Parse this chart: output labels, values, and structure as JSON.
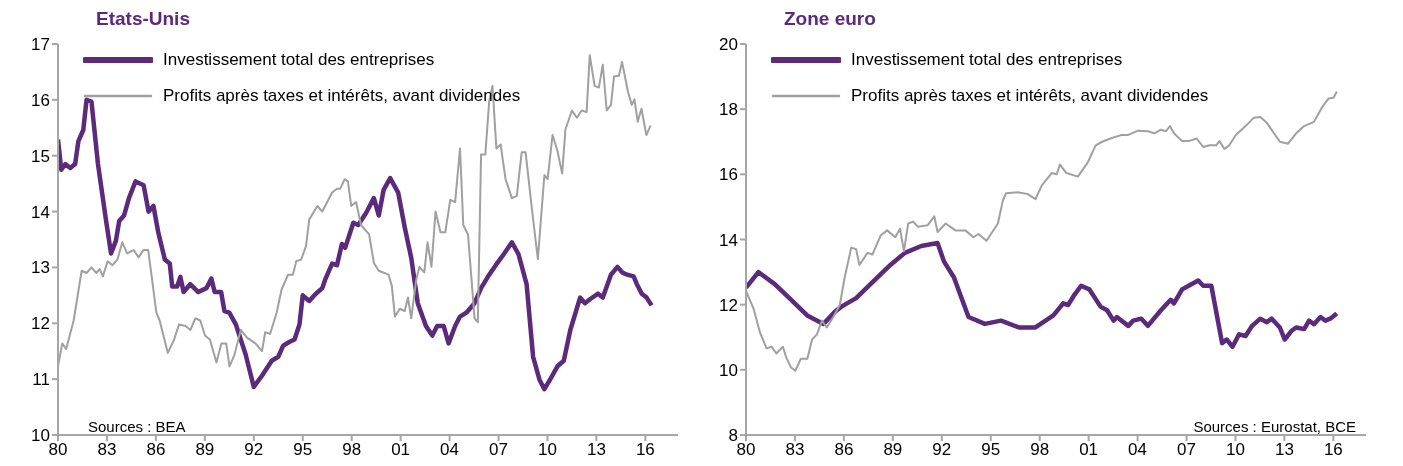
{
  "chart_data": [
    {
      "type": "line",
      "title": "Etats-Unis",
      "legend": "top left",
      "xlim": [
        1980,
        2018
      ],
      "xticks": [
        {
          "value": 1980,
          "label": "80"
        },
        {
          "value": 1983,
          "label": "83"
        },
        {
          "value": 1986,
          "label": "86"
        },
        {
          "value": 1989,
          "label": "89"
        },
        {
          "value": 1992,
          "label": "92"
        },
        {
          "value": 1995,
          "label": "95"
        },
        {
          "value": 1998,
          "label": "98"
        },
        {
          "value": 2001,
          "label": "01"
        },
        {
          "value": 2004,
          "label": "04"
        },
        {
          "value": 2007,
          "label": "07"
        },
        {
          "value": 2010,
          "label": "10"
        },
        {
          "value": 2013,
          "label": "13"
        },
        {
          "value": 2016,
          "label": "16"
        }
      ],
      "ylim": [
        10,
        17
      ],
      "yticks": [
        10,
        11,
        12,
        13,
        14,
        15,
        16,
        17
      ],
      "grid": false,
      "annotations": [
        "Sources : BEA"
      ],
      "series": [
        {
          "name": "Investissement total des entreprises",
          "color": "#5b2a7b",
          "x": [
            1980.0,
            1980.2,
            1980.45,
            1980.75,
            1981.05,
            1981.25,
            1981.55,
            1981.75,
            1982.05,
            1982.45,
            1982.95,
            1983.25,
            1983.55,
            1983.75,
            1984.05,
            1984.35,
            1984.75,
            1985.25,
            1985.55,
            1985.85,
            1986.15,
            1986.55,
            1986.85,
            1987.0,
            1987.3,
            1987.5,
            1987.7,
            1988.1,
            1988.6,
            1989.1,
            1989.4,
            1989.6,
            1990.0,
            1990.2,
            1990.5,
            1990.9,
            1991.5,
            1992.0,
            1992.5,
            1993.1,
            1993.5,
            1993.8,
            1994.2,
            1994.5,
            1994.8,
            1995.0,
            1995.4,
            1995.8,
            1996.2,
            1996.4,
            1996.8,
            1997.1,
            1997.4,
            1997.6,
            1998.1,
            1998.4,
            1998.87,
            1999.36,
            1999.66,
            1999.96,
            2000.36,
            2000.85,
            2001.25,
            2001.65,
            2002.05,
            2002.55,
            2002.94,
            2003.24,
            2003.64,
            2003.94,
            2004.34,
            2004.64,
            2005.03,
            2005.53,
            2005.93,
            2006.43,
            2006.83,
            2007.33,
            2007.82,
            2008.22,
            2008.72,
            2009.12,
            2009.51,
            2009.81,
            2010.21,
            2010.61,
            2011.0,
            2011.4,
            2012.0,
            2012.3,
            2012.6,
            2013.1,
            2013.39,
            2013.89,
            2014.29,
            2014.59,
            2014.88,
            2015.28,
            2015.48,
            2015.78,
            2016.08,
            2016.38
          ],
          "values": [
            15.29,
            14.75,
            14.85,
            14.78,
            14.85,
            15.26,
            15.46,
            16.0,
            15.97,
            14.85,
            13.83,
            13.25,
            13.48,
            13.83,
            13.93,
            14.24,
            14.54,
            14.47,
            14.0,
            14.1,
            13.62,
            13.14,
            13.07,
            12.66,
            12.66,
            12.83,
            12.56,
            12.7,
            12.56,
            12.63,
            12.8,
            12.56,
            12.56,
            12.22,
            12.19,
            11.98,
            11.44,
            10.86,
            11.06,
            11.33,
            11.4,
            11.6,
            11.67,
            11.71,
            11.98,
            12.5,
            12.4,
            12.53,
            12.63,
            12.8,
            13.07,
            13.04,
            13.42,
            13.35,
            13.8,
            13.76,
            13.97,
            14.24,
            13.93,
            14.39,
            14.6,
            14.34,
            13.72,
            13.17,
            12.36,
            11.95,
            11.78,
            11.95,
            11.95,
            11.64,
            11.95,
            12.12,
            12.19,
            12.36,
            12.63,
            12.87,
            13.04,
            13.24,
            13.45,
            13.24,
            12.7,
            11.4,
            10.99,
            10.82,
            11.02,
            11.23,
            11.33,
            11.88,
            12.46,
            12.36,
            12.43,
            12.53,
            12.46,
            12.87,
            13.01,
            12.91,
            12.87,
            12.84,
            12.7,
            12.53,
            12.46,
            12.32
          ]
        },
        {
          "name": "Profits après taxes et intérêts, avant dividendes",
          "color": "#a0a0a0",
          "x": [
            1980.0,
            1980.26,
            1980.5,
            1980.96,
            1981.45,
            1981.75,
            1982.05,
            1982.35,
            1982.55,
            1982.75,
            1983.04,
            1983.34,
            1983.64,
            1983.94,
            1984.24,
            1984.64,
            1984.94,
            1985.23,
            1985.53,
            1986.03,
            1986.23,
            1986.73,
            1987.12,
            1987.42,
            1987.82,
            1988.12,
            1988.42,
            1988.72,
            1989.01,
            1989.31,
            1989.71,
            1990.01,
            1990.31,
            1990.51,
            1990.81,
            1991.2,
            1991.6,
            1992.1,
            1992.5,
            1992.7,
            1993.0,
            1993.4,
            1993.7,
            1994.1,
            1994.4,
            1994.6,
            1994.9,
            1995.2,
            1995.4,
            1995.9,
            1996.2,
            1996.8,
            1997.1,
            1997.3,
            1997.57,
            1997.77,
            1997.97,
            1998.27,
            1998.57,
            1999.07,
            1999.36,
            1999.66,
            2000.26,
            2000.46,
            2000.65,
            2000.95,
            2001.25,
            2001.45,
            2001.65,
            2001.95,
            2002.15,
            2002.45,
            2002.65,
            2002.89,
            2003.14,
            2003.44,
            2003.74,
            2004.04,
            2004.34,
            2004.64,
            2004.84,
            2005.13,
            2005.53,
            2005.73,
            2005.93,
            2006.19,
            2006.43,
            2006.63,
            2006.87,
            2007.13,
            2007.43,
            2007.82,
            2008.12,
            2008.42,
            2008.66,
            2009.02,
            2009.41,
            2009.81,
            2010.01,
            2010.31,
            2010.61,
            2010.9,
            2011.1,
            2011.5,
            2011.8,
            2012.1,
            2012.4,
            2012.59,
            2012.89,
            2013.15,
            2013.39,
            2013.63,
            2013.89,
            2014.08,
            2014.38,
            2014.57,
            2014.93,
            2015.17,
            2015.33,
            2015.53,
            2015.76,
            2016.06,
            2016.32
          ],
          "values": [
            11.23,
            11.64,
            11.54,
            12.05,
            12.94,
            12.9,
            13.0,
            12.9,
            12.97,
            12.84,
            13.11,
            13.04,
            13.14,
            13.45,
            13.25,
            13.31,
            13.18,
            13.31,
            13.31,
            12.19,
            12.05,
            11.47,
            11.71,
            11.98,
            11.95,
            11.88,
            12.09,
            12.05,
            11.78,
            11.71,
            11.3,
            11.64,
            11.64,
            11.23,
            11.43,
            11.88,
            11.74,
            11.64,
            11.5,
            11.84,
            11.81,
            12.19,
            12.6,
            12.87,
            12.87,
            13.11,
            13.14,
            13.38,
            13.86,
            14.1,
            14.0,
            14.34,
            14.41,
            14.41,
            14.58,
            14.54,
            14.1,
            14.17,
            13.76,
            13.59,
            13.08,
            12.94,
            12.87,
            12.67,
            12.12,
            12.26,
            12.22,
            12.46,
            12.09,
            12.77,
            13.01,
            12.91,
            13.45,
            13.01,
            14.0,
            13.63,
            13.63,
            14.21,
            14.17,
            15.13,
            13.76,
            13.59,
            12.09,
            12.02,
            15.02,
            15.02,
            15.98,
            16.25,
            15.13,
            15.2,
            14.58,
            14.24,
            14.28,
            15.06,
            15.06,
            14.11,
            13.15,
            14.65,
            14.58,
            15.37,
            15.09,
            14.68,
            15.47,
            15.81,
            15.68,
            15.81,
            15.78,
            16.8,
            16.25,
            16.22,
            16.63,
            15.81,
            15.91,
            16.42,
            16.43,
            16.68,
            16.15,
            15.91,
            16.01,
            15.61,
            15.84,
            15.37,
            15.54
          ]
        }
      ]
    },
    {
      "type": "line",
      "title": "Zone euro",
      "legend": "top left",
      "xlim": [
        1980,
        2018
      ],
      "xticks": [
        {
          "value": 1980,
          "label": "80"
        },
        {
          "value": 1983,
          "label": "83"
        },
        {
          "value": 1986,
          "label": "86"
        },
        {
          "value": 1989,
          "label": "89"
        },
        {
          "value": 1992,
          "label": "92"
        },
        {
          "value": 1995,
          "label": "95"
        },
        {
          "value": 1998,
          "label": "98"
        },
        {
          "value": 2001,
          "label": "01"
        },
        {
          "value": 2004,
          "label": "04"
        },
        {
          "value": 2007,
          "label": "07"
        },
        {
          "value": 2010,
          "label": "10"
        },
        {
          "value": 2013,
          "label": "13"
        },
        {
          "value": 2016,
          "label": "16"
        }
      ],
      "ylim": [
        8,
        20
      ],
      "yticks": [
        8,
        10,
        12,
        14,
        16,
        18,
        20
      ],
      "grid": false,
      "annotations": [
        "Sources : Eurostat, BCE"
      ],
      "series": [
        {
          "name": "Investissement total des entreprises",
          "color": "#5b2a7b",
          "x": [
            1980.0,
            1980.76,
            1981.76,
            1982.66,
            1983.75,
            1984.75,
            1985.45,
            1985.85,
            1986.75,
            1987.85,
            1988.85,
            1989.74,
            1990.74,
            1991.74,
            1992.14,
            1992.74,
            1993.64,
            1994.64,
            1995.63,
            1996.73,
            1997.74,
            1998.84,
            1999.44,
            1999.74,
            2000.14,
            2000.54,
            2001.04,
            2001.73,
            2002.13,
            2002.53,
            2002.73,
            2003.43,
            2003.73,
            2004.23,
            2004.63,
            2005.43,
            2006.03,
            2006.23,
            2006.73,
            2007.13,
            2007.72,
            2008.02,
            2008.52,
            2009.18,
            2009.46,
            2009.82,
            2010.22,
            2010.62,
            2011.02,
            2011.52,
            2011.92,
            2012.22,
            2012.72,
            2013.02,
            2013.42,
            2013.72,
            2014.21,
            2014.51,
            2014.81,
            2015.21,
            2015.51,
            2015.81,
            2016.21
          ],
          "values": [
            12.52,
            13.0,
            12.63,
            12.2,
            11.67,
            11.41,
            11.78,
            11.94,
            12.2,
            12.74,
            13.22,
            13.59,
            13.8,
            13.89,
            13.32,
            12.84,
            11.62,
            11.41,
            11.51,
            11.3,
            11.3,
            11.67,
            12.04,
            11.99,
            12.31,
            12.58,
            12.47,
            11.94,
            11.83,
            11.51,
            11.62,
            11.35,
            11.51,
            11.57,
            11.35,
            11.83,
            12.15,
            12.04,
            12.47,
            12.58,
            12.74,
            12.58,
            12.58,
            10.82,
            10.93,
            10.71,
            11.09,
            11.04,
            11.35,
            11.57,
            11.46,
            11.57,
            11.3,
            10.93,
            11.19,
            11.3,
            11.25,
            11.51,
            11.4,
            11.62,
            11.51,
            11.57,
            11.73
          ]
        },
        {
          "name": "Profits après taxes et intérêts, avant dividendes",
          "color": "#a0a0a0",
          "x": [
            1980.0,
            1980.46,
            1980.86,
            1981.26,
            1981.56,
            1981.86,
            1982.26,
            1982.46,
            1982.76,
            1983.02,
            1983.36,
            1983.76,
            1984.05,
            1984.35,
            1984.65,
            1984.95,
            1985.35,
            1985.75,
            1986.05,
            1986.45,
            1986.75,
            1986.95,
            1987.45,
            1987.75,
            1988.25,
            1988.65,
            1989.15,
            1989.44,
            1989.68,
            1989.94,
            1990.24,
            1990.54,
            1991.14,
            1991.54,
            1991.74,
            1992.24,
            1992.84,
            1993.44,
            1993.94,
            1994.24,
            1994.74,
            1995.44,
            1995.74,
            1995.94,
            1996.64,
            1997.24,
            1997.74,
            1998.14,
            1998.74,
            1999.04,
            1999.24,
            1999.64,
            2000.34,
            2000.94,
            2001.43,
            2001.83,
            2002.33,
            2003.03,
            2003.43,
            2004.03,
            2004.63,
            2005.03,
            2005.43,
            2005.73,
            2005.99,
            2006.23,
            2006.73,
            2007.13,
            2007.62,
            2008.02,
            2008.42,
            2008.82,
            2009.02,
            2009.32,
            2009.62,
            2010.02,
            2010.62,
            2011.12,
            2011.52,
            2011.92,
            2012.72,
            2013.22,
            2013.72,
            2014.21,
            2014.81,
            2015.31,
            2015.71,
            2016.01,
            2016.21
          ],
          "values": [
            12.42,
            11.88,
            11.14,
            10.66,
            10.71,
            10.5,
            10.71,
            10.39,
            10.07,
            9.97,
            10.34,
            10.34,
            10.93,
            11.09,
            11.51,
            11.3,
            11.62,
            11.99,
            12.84,
            13.75,
            13.7,
            13.22,
            13.59,
            13.54,
            14.12,
            14.28,
            14.07,
            14.33,
            13.64,
            14.49,
            14.55,
            14.39,
            14.44,
            14.71,
            14.23,
            14.49,
            14.28,
            14.28,
            14.07,
            14.17,
            13.96,
            14.49,
            15.19,
            15.42,
            15.45,
            15.4,
            15.24,
            15.67,
            16.04,
            16.0,
            16.3,
            16.04,
            15.93,
            16.36,
            16.89,
            17.0,
            17.1,
            17.21,
            17.21,
            17.34,
            17.32,
            17.26,
            17.37,
            17.32,
            17.48,
            17.26,
            17.02,
            17.02,
            17.1,
            16.84,
            16.89,
            16.89,
            17.02,
            16.78,
            16.89,
            17.21,
            17.48,
            17.74,
            17.76,
            17.58,
            17.0,
            16.94,
            17.26,
            17.48,
            17.61,
            18.06,
            18.33,
            18.35,
            18.54
          ]
        }
      ]
    }
  ]
}
